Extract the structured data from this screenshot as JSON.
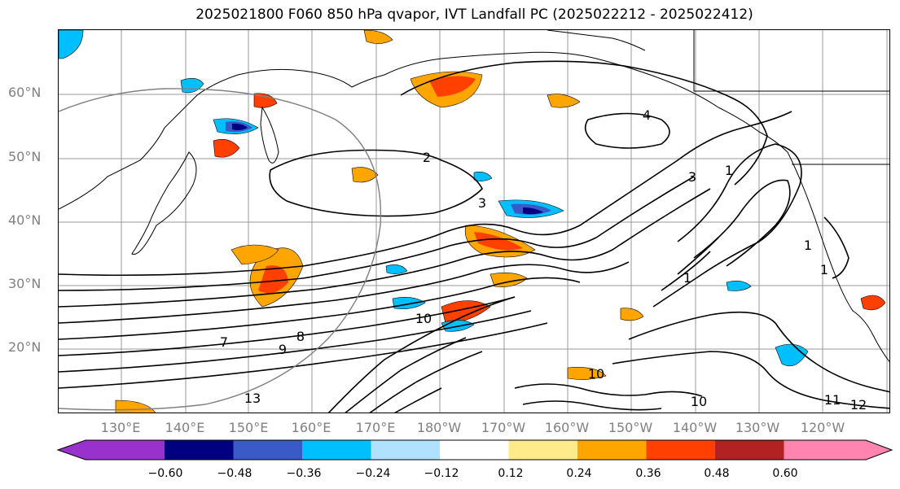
{
  "title": "2025021800 F060 850 hPa qvapor, IVT Landfall PC (2025022212 - 2025022412)",
  "latitude_labels": [
    "60°N",
    "50°N",
    "40°N",
    "30°N",
    "20°N"
  ],
  "longitude_labels": [
    "130°E",
    "140°E",
    "150°E",
    "160°E",
    "170°E",
    "180°W",
    "170°W",
    "160°W",
    "150°W",
    "140°W",
    "130°W",
    "120°W"
  ],
  "contour_labels": [
    "2",
    "4",
    "3",
    "3",
    "7",
    "8",
    "9",
    "10",
    "10",
    "10",
    "11",
    "12",
    "13",
    "1",
    "1",
    "1",
    "1"
  ],
  "colorbar": {
    "ticks": [
      "−0.60",
      "−0.48",
      "−0.36",
      "−0.24",
      "−0.12",
      "0.12",
      "0.24",
      "0.36",
      "0.48",
      "0.60"
    ],
    "colors": [
      "#9932cc",
      "#000080",
      "#3a5bc7",
      "#00bfff",
      "#b0e2ff",
      "#ffffff",
      "#ffeb8a",
      "#ffa500",
      "#ff4000",
      "#b22222",
      "#ff85b0"
    ]
  }
}
